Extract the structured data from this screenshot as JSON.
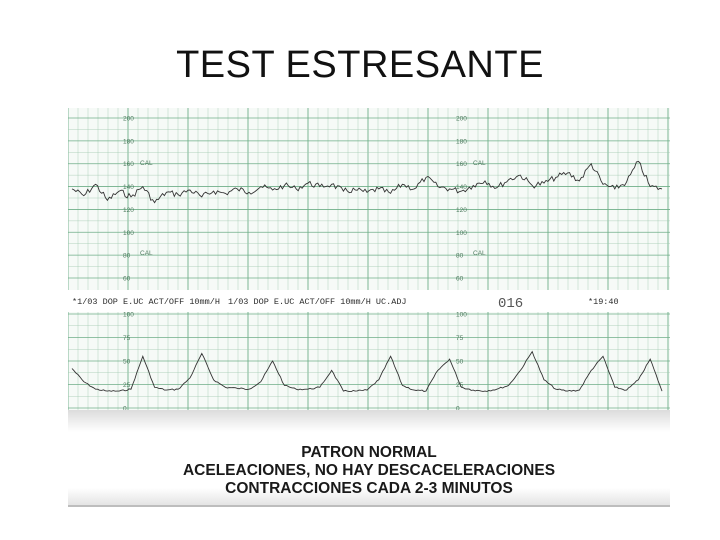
{
  "title": "TEST ESTRESANTE",
  "caption": {
    "line1": "PATRON NORMAL",
    "line2": "ACELEACIONES, NO HAY DESCACELERACIONES",
    "line3": "CONTRACCIONES CADA 2-3 MINUTOS"
  },
  "annotations": {
    "left_strip": "*1/03 DOP E.UC ACT/OFF 10mm/H",
    "right_strip": "1/03 DOP E.UC ACT/OFF 10mm/H UC.ADJ",
    "page_number": "016",
    "time": "*19:40"
  },
  "colors": {
    "grid": "#9fc8ae",
    "grid_major": "#6fae88",
    "trace": "#333333",
    "paper": "#f6faf7"
  },
  "chart_data": [
    {
      "type": "line",
      "title": "",
      "xlabel": "",
      "ylabel": "",
      "ylim": [
        60,
        200
      ],
      "yticks": [
        "200",
        "180",
        "160",
        "140",
        "120",
        "100",
        "80",
        "60"
      ],
      "tick_markers": [
        "CAL",
        "CAL"
      ],
      "x": [
        0,
        0.4,
        0.8,
        1.2,
        1.6,
        2.0,
        2.4,
        2.8,
        3.2,
        3.6,
        4.0,
        4.4,
        4.8,
        5.2,
        5.6,
        6.0,
        6.4,
        6.8,
        7.2,
        7.6,
        8.0,
        8.4,
        8.8,
        9.2,
        9.6,
        10.0,
        10.4,
        10.8,
        11.2,
        11.6,
        12.0,
        12.4,
        12.8,
        13.2,
        13.6,
        14.0,
        14.4,
        14.8,
        15.2,
        15.6,
        16.0,
        16.4,
        16.8,
        17.2,
        17.6,
        18.0,
        18.4,
        18.8,
        19.2,
        19.6,
        20.0
      ],
      "series": [
        {
          "values": [
            138,
            132,
            142,
            128,
            136,
            131,
            140,
            126,
            135,
            133,
            137,
            131,
            136,
            134,
            138,
            135,
            140,
            137,
            141,
            138,
            143,
            140,
            142,
            136,
            137,
            135,
            138,
            134,
            142,
            138,
            148,
            140,
            138,
            136,
            141,
            145,
            139,
            146,
            150,
            141,
            143,
            148,
            152,
            145,
            160,
            142,
            138,
            144,
            162,
            140,
            138
          ]
        }
      ]
    },
    {
      "type": "line",
      "title": "",
      "xlabel": "",
      "ylabel": "",
      "ylim": [
        0,
        100
      ],
      "yticks": [
        "100",
        "75",
        "50",
        "25",
        "0"
      ],
      "x": [
        0,
        0.4,
        0.8,
        1.2,
        1.6,
        2.0,
        2.4,
        2.8,
        3.2,
        3.6,
        4.0,
        4.4,
        4.8,
        5.2,
        5.6,
        6.0,
        6.4,
        6.8,
        7.2,
        7.6,
        8.0,
        8.4,
        8.8,
        9.2,
        9.6,
        10.0,
        10.4,
        10.8,
        11.2,
        11.6,
        12.0,
        12.4,
        12.8,
        13.2,
        13.6,
        14.0,
        14.4,
        14.8,
        15.2,
        15.6,
        16.0,
        16.4,
        16.8,
        17.2,
        17.6,
        18.0,
        18.4,
        18.8,
        19.2,
        19.6,
        20.0
      ],
      "series": [
        {
          "values": [
            42,
            28,
            20,
            18,
            18,
            20,
            55,
            22,
            19,
            20,
            32,
            58,
            30,
            22,
            21,
            20,
            28,
            50,
            24,
            20,
            20,
            22,
            40,
            18,
            18,
            19,
            30,
            55,
            24,
            19,
            18,
            40,
            52,
            22,
            19,
            18,
            20,
            24,
            40,
            60,
            30,
            20,
            18,
            19,
            40,
            55,
            22,
            19,
            30,
            52,
            18
          ]
        }
      ]
    }
  ]
}
